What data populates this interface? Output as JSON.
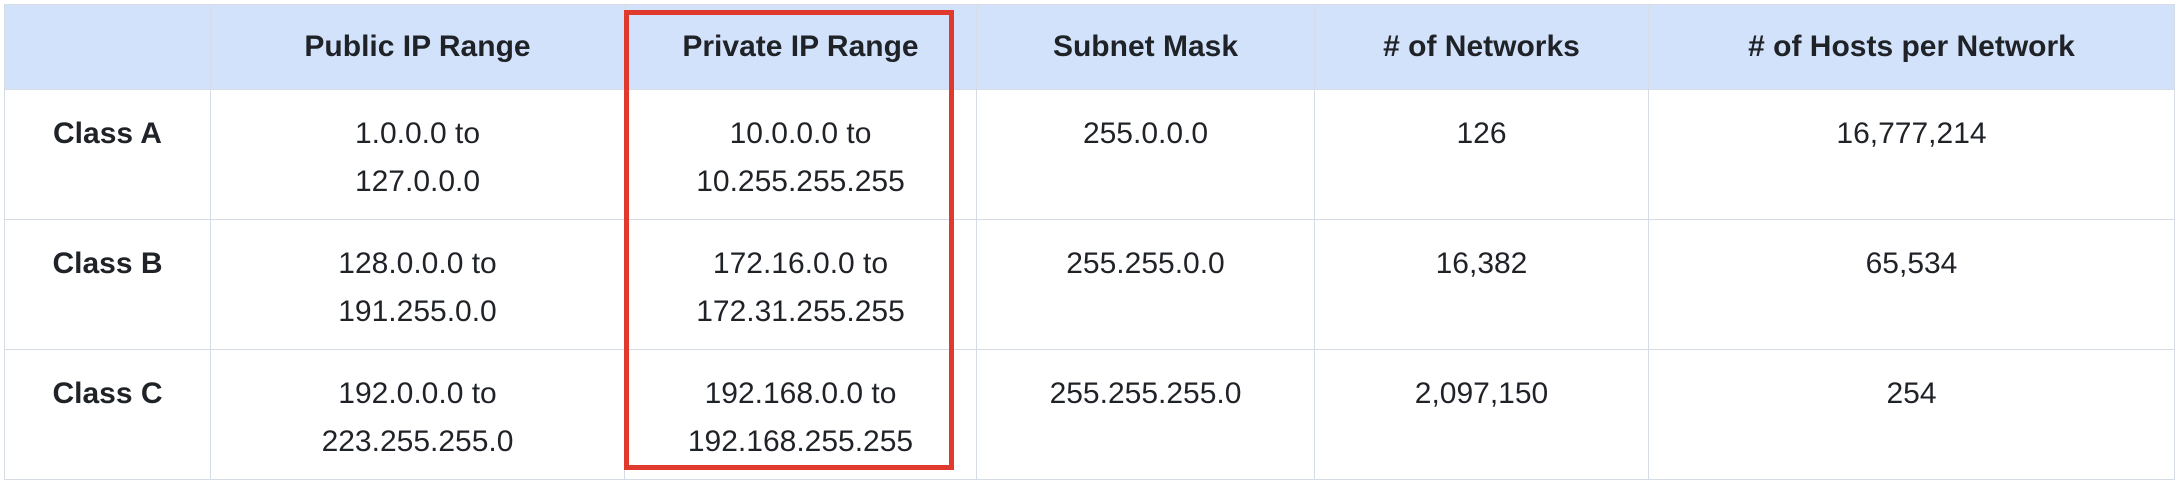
{
  "table": {
    "headers": [
      "",
      "Public IP Range",
      "Private IP Range",
      "Subnet Mask",
      "# of Networks",
      "# of Hosts per Network"
    ],
    "rows": [
      {
        "class": "Class A",
        "public": [
          "1.0.0.0 to",
          "127.0.0.0"
        ],
        "private": [
          "10.0.0.0 to",
          "10.255.255.255"
        ],
        "mask": "255.0.0.0",
        "networks": "126",
        "hosts": "16,777,214"
      },
      {
        "class": "Class B",
        "public": [
          "128.0.0.0 to",
          "191.255.0.0"
        ],
        "private": [
          "172.16.0.0 to",
          "172.31.255.255"
        ],
        "mask": "255.255.0.0",
        "networks": "16,382",
        "hosts": "65,534"
      },
      {
        "class": "Class C",
        "public": [
          "192.0.0.0 to",
          "223.255.255.0"
        ],
        "private": [
          "192.168.0.0 to",
          "192.168.255.255"
        ],
        "mask": "255.255.255.0",
        "networks": "2,097,150",
        "hosts": "254"
      }
    ]
  },
  "highlight": {
    "column": "Private IP Range",
    "color": "#e03a2f"
  },
  "colors": {
    "header_bg": "#d3e2fb",
    "border": "#d6dce5",
    "text": "#1f2328"
  }
}
